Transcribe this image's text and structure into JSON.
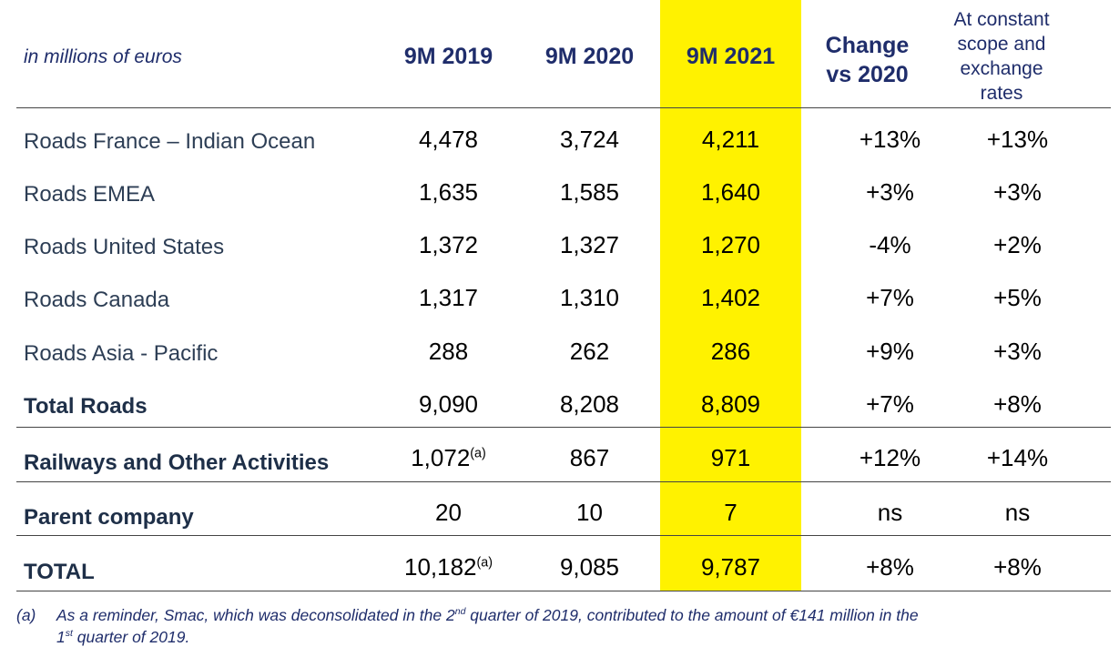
{
  "header": {
    "unit_label": "in millions of euros",
    "col_2019": "9M 2019",
    "col_2020": "9M 2020",
    "col_2021": "9M 2021",
    "change_line1": "Change",
    "change_line2": "vs 2020",
    "constant": "At constant scope and exchange rates"
  },
  "rows": [
    {
      "label": "Roads France – Indian Ocean",
      "y2019": "4,478",
      "y2020": "3,724",
      "y2021": "4,211",
      "change": "+13%",
      "constant": "+13%"
    },
    {
      "label": "Roads EMEA",
      "y2019": "1,635",
      "y2020": "1,585",
      "y2021": "1,640",
      "change": "+3%",
      "constant": "+3%"
    },
    {
      "label": "Roads United States",
      "y2019": "1,372",
      "y2020": "1,327",
      "y2021": "1,270",
      "change": "-4%",
      "constant": "+2%"
    },
    {
      "label": "Roads Canada",
      "y2019": "1,317",
      "y2020": "1,310",
      "y2021": "1,402",
      "change": "+7%",
      "constant": "+5%"
    },
    {
      "label": "Roads Asia - Pacific",
      "y2019": "288",
      "y2020": "262",
      "y2021": "286",
      "change": "+9%",
      "constant": "+3%"
    },
    {
      "label": "Total Roads",
      "y2019": "9,090",
      "y2020": "8,208",
      "y2021": "8,809",
      "change": "+7%",
      "constant": "+8%"
    },
    {
      "label": "Railways and Other Activities",
      "y2019": "1,072",
      "y2019_note": "(a)",
      "y2020": "867",
      "y2021": "971",
      "change": "+12%",
      "constant": "+14%"
    },
    {
      "label": "Parent company",
      "y2019": "20",
      "y2020": "10",
      "y2021": "7",
      "change": "ns",
      "constant": "ns"
    },
    {
      "label": "TOTAL",
      "y2019": "10,182",
      "y2019_note": "(a)",
      "y2020": "9,085",
      "y2021": "9,787",
      "change": "+8%",
      "constant": "+8%"
    }
  ],
  "footnote": {
    "marker": "(a)",
    "t1": "As a reminder, Smac, which was deconsolidated in the 2",
    "sup1": "nd",
    "t2": " quarter of 2019, contributed to the amount of €141 million in the",
    "t3": "1",
    "sup2": "st",
    "t4": " quarter of 2019."
  },
  "colors": {
    "highlight": "#fff200",
    "header_text": "#1f2d6b",
    "label_text": "#2d3e55"
  }
}
